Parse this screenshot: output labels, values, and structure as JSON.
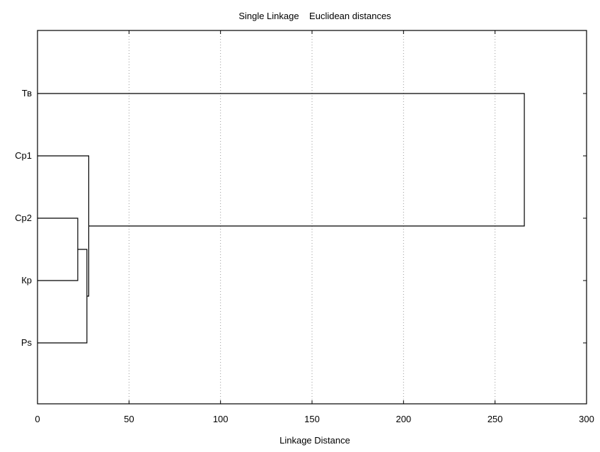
{
  "chart_data": {
    "type": "dendrogram",
    "title": "Single Linkage    Euclidean distances",
    "xlabel": "Linkage Distance",
    "xlim": [
      0,
      300
    ],
    "x_ticks": [
      0,
      50,
      100,
      150,
      200,
      250,
      300
    ],
    "grid": "vertical dotted",
    "orientation": "horizontal",
    "leaves": [
      "Тв",
      "Ср1",
      "Ср2",
      "Кр",
      "Рs"
    ],
    "merges": [
      {
        "left": "Ср2",
        "right": "Кр",
        "distance": 22
      },
      {
        "left": "Ср2+Кр",
        "right": "Рs",
        "distance": 27
      },
      {
        "left": "Ср1",
        "right": "Ср2+Кр+Рs",
        "distance": 28
      },
      {
        "left": "Тв",
        "right": "Ср1+Ср2+Кр+Рs",
        "distance": 266
      }
    ]
  }
}
